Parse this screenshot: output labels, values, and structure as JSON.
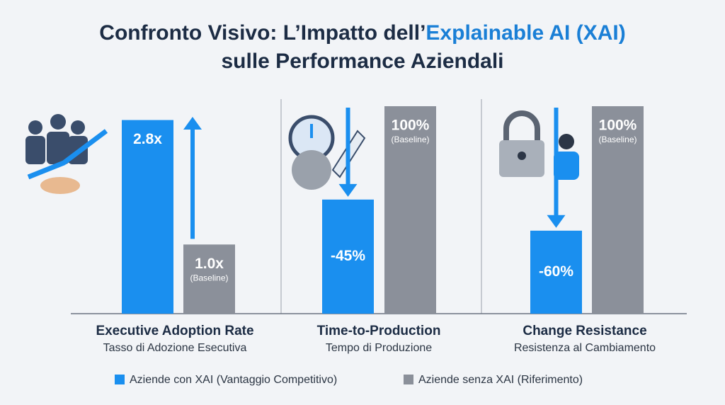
{
  "chart_data": {
    "type": "bar",
    "title_parts": [
      "Confronto Visivo: L’Impatto dell’",
      "Explainable AI (XAI)",
      "sulle Performance Aziendali"
    ],
    "categories": [
      "Executive Adoption Rate",
      "Time-to-Production",
      "Change Resistance"
    ],
    "category_subtitles": [
      "Tasso di Adozione Esecutiva",
      "Tempo di Produzione",
      "Resistenza al Cambiamento"
    ],
    "category_ylims": [
      [
        0,
        3
      ],
      [
        0,
        100
      ],
      [
        0,
        100
      ]
    ],
    "value_modes": [
      "absolute",
      "change",
      "change"
    ],
    "series": [
      {
        "name": "Aziende con XAI (Vantaggio Competitivo)",
        "color": "#1a8fef",
        "values": [
          2.8,
          -45,
          -60
        ],
        "value_labels": [
          "2.8x",
          "-45%",
          "-60%"
        ]
      },
      {
        "name": "Aziende senza XAI (Riferimento)",
        "color": "#8b909a",
        "values": [
          1.0,
          100,
          100
        ],
        "value_labels": [
          "1.0x",
          "100%",
          "100%"
        ],
        "value_notes": [
          "(Baseline)",
          "(Baseline)",
          "(Baseline)"
        ]
      }
    ]
  }
}
